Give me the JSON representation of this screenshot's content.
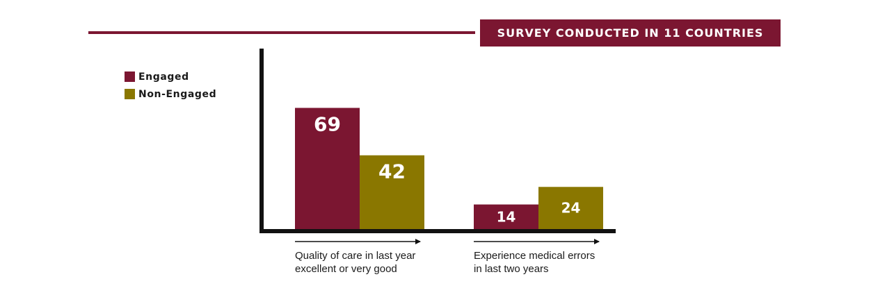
{
  "banner": {
    "text": "SURVEY CONDUCTED IN 11 COUNTRIES"
  },
  "colors": {
    "engaged": "#7b1631",
    "non_engaged": "#8a7700",
    "axis": "#111111",
    "text": "#1a1a1a"
  },
  "legend": {
    "items": [
      {
        "label": "Engaged",
        "color": "#7b1631"
      },
      {
        "label": "Non-Engaged",
        "color": "#8a7700"
      }
    ]
  },
  "chart_data": {
    "type": "bar",
    "title": "",
    "xlabel": "",
    "ylabel": "",
    "ylim": [
      0,
      100
    ],
    "grid": false,
    "legend_position": "top-left",
    "categories": [
      "Quality of care in last year excellent or very good",
      "Experience medical errors in last two years"
    ],
    "category_lines": [
      [
        "Quality of care in last year",
        "excellent or very good"
      ],
      [
        "Experience medical errors",
        "in last two years"
      ]
    ],
    "series": [
      {
        "name": "Engaged",
        "values": [
          69,
          14
        ]
      },
      {
        "name": "Non-Engaged",
        "values": [
          42,
          24
        ]
      }
    ]
  }
}
